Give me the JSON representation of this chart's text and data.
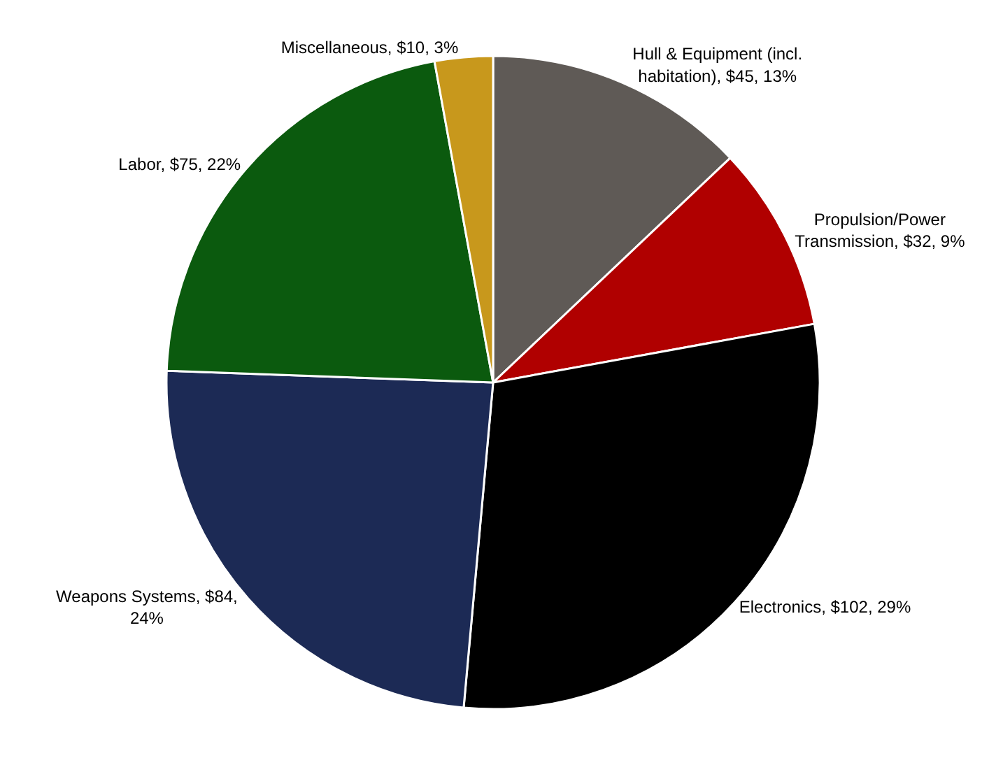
{
  "chart_data": {
    "type": "pie",
    "categories": [
      "Hull & Equipment (incl. habitation)",
      "Propulsion/Power Transmission",
      "Electronics",
      "Weapons Systems",
      "Labor",
      "Miscellaneous"
    ],
    "values": [
      45,
      32,
      102,
      84,
      75,
      10
    ],
    "value_labels": [
      "$45, 13%",
      "$32, 9%",
      "$102, 29%",
      "$84, 24%",
      "$75, 22%",
      "$10, 3%"
    ],
    "colors": [
      "#5f5a56",
      "#b00000",
      "#000000",
      "#1c2a55",
      "#0b5a0e",
      "#c8981c"
    ],
    "legend": false
  }
}
